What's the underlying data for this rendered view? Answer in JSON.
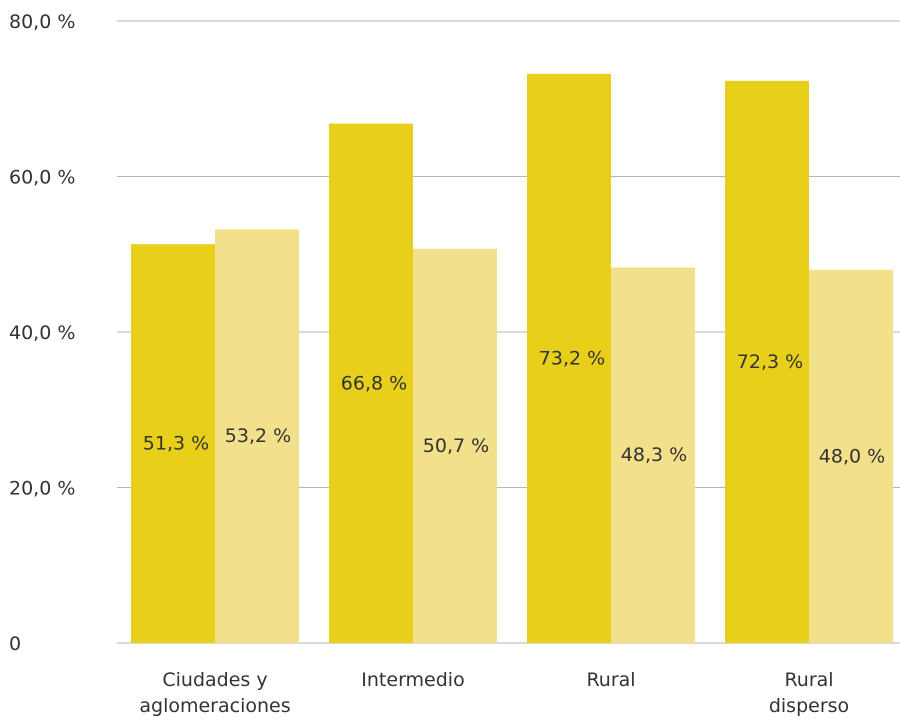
{
  "chart_data": {
    "type": "bar",
    "categories": [
      [
        "Ciudades y",
        "aglomeraciones"
      ],
      [
        "Intermedio"
      ],
      [
        "Rural"
      ],
      [
        "Rural",
        "disperso"
      ]
    ],
    "series": [
      {
        "values": [
          51.3,
          66.8,
          73.2,
          72.3
        ],
        "labels": [
          "51,3 %",
          "66,8 %",
          "73,2 %",
          "72,3 %"
        ],
        "color": "#e8cf1a"
      },
      {
        "values": [
          53.2,
          50.7,
          48.3,
          48.0
        ],
        "labels": [
          "53,2 %",
          "50,7 %",
          "48,3 %",
          "48,0 %"
        ],
        "color": "#f2e08a"
      }
    ],
    "yticks": [
      0,
      20,
      40,
      60,
      80
    ],
    "ytick_labels": [
      "0",
      "20,0 %",
      "40,0 %",
      "60,0 %",
      "80,0 %"
    ],
    "ylim": [
      0,
      80
    ],
    "grid": true,
    "legend": "none"
  },
  "colors": {
    "gridline": "#b5b5b5",
    "text": "#333333"
  }
}
